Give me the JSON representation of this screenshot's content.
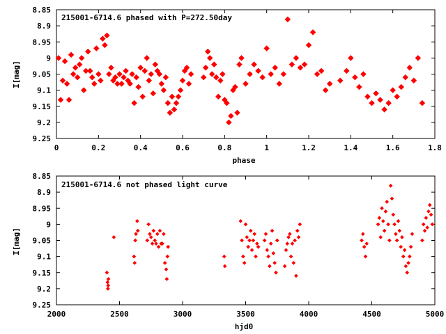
{
  "chart_data": [
    {
      "type": "scatter",
      "title": "215001-6714.6 phased with P=272.50day",
      "xlabel": "phase",
      "ylabel": "I[mag]",
      "xlim": [
        0,
        1.8
      ],
      "ylim": [
        9.25,
        8.85
      ],
      "y_inverted": true,
      "xticks": [
        "0",
        "0.2",
        "0.4",
        "0.6",
        "0.8",
        "1",
        "1.2",
        "1.4",
        "1.6",
        "1.8"
      ],
      "xtick_values": [
        0,
        0.2,
        0.4,
        0.6,
        0.8,
        1.0,
        1.2,
        1.4,
        1.6,
        1.8
      ],
      "yticks": [
        "8.85",
        "8.9",
        "8.95",
        "9",
        "9.05",
        "9.1",
        "9.15",
        "9.2",
        "9.25"
      ],
      "ytick_values": [
        8.85,
        8.9,
        8.95,
        9.0,
        9.05,
        9.1,
        9.15,
        9.2,
        9.25
      ],
      "marker_color": "#ff0000",
      "series": [
        {
          "x": [
            0.01,
            0.02,
            0.03,
            0.04,
            0.05,
            0.06,
            0.07,
            0.08,
            0.09,
            0.1,
            0.11,
            0.12,
            0.13,
            0.14,
            0.15,
            0.16,
            0.17,
            0.18,
            0.19,
            0.2,
            0.21,
            0.22,
            0.23,
            0.24,
            0.25,
            0.26,
            0.27,
            0.28,
            0.29,
            0.3,
            0.31,
            0.32,
            0.33,
            0.34,
            0.35,
            0.36,
            0.37,
            0.38,
            0.39,
            0.4,
            0.41,
            0.42,
            0.43,
            0.44,
            0.45,
            0.46,
            0.47,
            0.48,
            0.49,
            0.5,
            0.51,
            0.52,
            0.53,
            0.54,
            0.55,
            0.56,
            0.57,
            0.58,
            0.59,
            0.6,
            0.61,
            0.62,
            0.63,
            0.64,
            0.7,
            0.71,
            0.72,
            0.73,
            0.74,
            0.75,
            0.76,
            0.77,
            0.78,
            0.79,
            0.8,
            0.81,
            0.82,
            0.83,
            0.84,
            0.85,
            0.86,
            0.87,
            0.88,
            0.9,
            0.92,
            0.94,
            0.96,
            0.98,
            1.0,
            1.02,
            1.04,
            1.06,
            1.08,
            1.1,
            1.12,
            1.14,
            1.16,
            1.18,
            1.2,
            1.22,
            1.24,
            1.26,
            1.28,
            1.3,
            1.35,
            1.38,
            1.4,
            1.42,
            1.44,
            1.46,
            1.48,
            1.5,
            1.52,
            1.54,
            1.56,
            1.58,
            1.6,
            1.62,
            1.64,
            1.66,
            1.68,
            1.7,
            1.72,
            1.74
          ],
          "y": [
            9.0,
            9.13,
            9.07,
            9.01,
            9.08,
            9.13,
            8.99,
            9.05,
            9.03,
            9.06,
            9.02,
            9.0,
            9.1,
            9.04,
            8.98,
            9.04,
            9.06,
            9.08,
            8.97,
            9.05,
            9.07,
            8.94,
            8.96,
            8.93,
            9.05,
            9.03,
            9.07,
            9.06,
            9.08,
            9.05,
            9.08,
            9.06,
            9.04,
            9.07,
            9.08,
            9.05,
            9.14,
            9.06,
            9.09,
            9.03,
            9.12,
            9.04,
            9.0,
            9.07,
            9.05,
            9.11,
            9.02,
            9.04,
            9.05,
            9.08,
            9.1,
            9.06,
            9.14,
            9.17,
            9.12,
            9.16,
            9.14,
            9.12,
            9.1,
            9.07,
            9.04,
            9.03,
            9.08,
            9.05,
            9.06,
            9.03,
            8.98,
            9.0,
            9.05,
            9.02,
            9.06,
            9.12,
            9.07,
            9.05,
            9.13,
            9.14,
            9.2,
            9.18,
            9.1,
            9.09,
            9.17,
            9.02,
            9.0,
            9.08,
            9.05,
            9.02,
            9.04,
            9.06,
            8.97,
            9.05,
            9.03,
            9.08,
            9.05,
            8.88,
            9.02,
            9.0,
            9.03,
            9.02,
            8.96,
            8.92,
            9.05,
            9.04,
            9.1,
            9.08,
            9.07,
            9.04,
            9.0,
            9.06,
            9.09,
            9.05,
            9.12,
            9.14,
            9.11,
            9.13,
            9.16,
            9.14,
            9.1,
            9.12,
            9.09,
            9.06,
            9.03,
            9.07,
            9.0,
            9.14
          ]
        }
      ]
    },
    {
      "type": "scatter",
      "title": "215001-6714.6 not phased light curve",
      "xlabel": "hjd0",
      "ylabel": "I[mag]",
      "xlim": [
        2000,
        5000
      ],
      "ylim": [
        9.25,
        8.85
      ],
      "y_inverted": true,
      "xticks": [
        "2000",
        "2500",
        "3000",
        "3500",
        "4000",
        "4500",
        "5000"
      ],
      "xtick_values": [
        2000,
        2500,
        3000,
        3500,
        4000,
        4500,
        5000
      ],
      "yticks": [
        "8.85",
        "8.9",
        "8.95",
        "9",
        "9.05",
        "9.1",
        "9.15",
        "9.2",
        "9.25"
      ],
      "ytick_values": [
        8.85,
        8.9,
        8.95,
        9.0,
        9.05,
        9.1,
        9.15,
        9.2,
        9.25
      ],
      "marker_color": "#ff0000",
      "series": [
        {
          "x": [
            2400,
            2405,
            2408,
            2410,
            2412,
            2455,
            2615,
            2620,
            2625,
            2630,
            2640,
            2645,
            2720,
            2730,
            2740,
            2750,
            2760,
            2770,
            2780,
            2790,
            2800,
            2810,
            2820,
            2830,
            2840,
            2850,
            2860,
            2870,
            2875,
            2880,
            2885,
            3330,
            3335,
            3460,
            3470,
            3480,
            3490,
            3500,
            3510,
            3520,
            3530,
            3540,
            3550,
            3560,
            3570,
            3580,
            3590,
            3600,
            3650,
            3660,
            3670,
            3680,
            3690,
            3700,
            3710,
            3720,
            3730,
            3740,
            3750,
            3810,
            3820,
            3830,
            3840,
            3850,
            3860,
            3870,
            3880,
            3890,
            3900,
            3910,
            3920,
            3930,
            4420,
            4430,
            4440,
            4450,
            4460,
            4550,
            4560,
            4570,
            4580,
            4590,
            4600,
            4610,
            4620,
            4630,
            4640,
            4650,
            4660,
            4670,
            4680,
            4690,
            4700,
            4710,
            4720,
            4730,
            4740,
            4750,
            4760,
            4770,
            4780,
            4790,
            4800,
            4810,
            4820,
            4900,
            4910,
            4920,
            4930,
            4940,
            4950,
            4960,
            4970,
            4980
          ],
          "y": [
            9.15,
            9.18,
            9.2,
            9.19,
            9.17,
            9.04,
            9.1,
            9.12,
            9.05,
            9.03,
            8.99,
            9.02,
            9.05,
            9.0,
            9.03,
            9.04,
            9.06,
            9.02,
            9.05,
            9.06,
            9.03,
            9.07,
            9.02,
            9.06,
            9.06,
            9.03,
            9.12,
            9.14,
            9.17,
            9.1,
            9.07,
            9.1,
            9.13,
            8.99,
            9.05,
            9.1,
            9.12,
            9.0,
            9.04,
            9.07,
            9.05,
            9.02,
            9.08,
            9.05,
            9.03,
            9.1,
            9.06,
            9.07,
            9.05,
            9.03,
            9.08,
            9.1,
            9.13,
            9.06,
            9.02,
            9.09,
            9.12,
            9.15,
            9.05,
            9.13,
            9.08,
            9.06,
            9.04,
            9.03,
            9.1,
            9.06,
            9.12,
            9.05,
            9.16,
            9.02,
            9.04,
            9.0,
            9.05,
            9.03,
            9.07,
            9.1,
            9.06,
            9.0,
            8.98,
            9.04,
            8.95,
            8.99,
            9.02,
            8.96,
            8.93,
            9.0,
            9.05,
            8.88,
            8.92,
            8.97,
            9.0,
            9.03,
            9.05,
            8.99,
            9.02,
            9.07,
            9.04,
            9.1,
            9.08,
            9.13,
            9.15,
            9.12,
            9.1,
            9.07,
            9.03,
            9.05,
            9.0,
            9.02,
            8.98,
            9.01,
            8.96,
            8.94,
            8.97,
            9.0
          ]
        }
      ]
    }
  ]
}
